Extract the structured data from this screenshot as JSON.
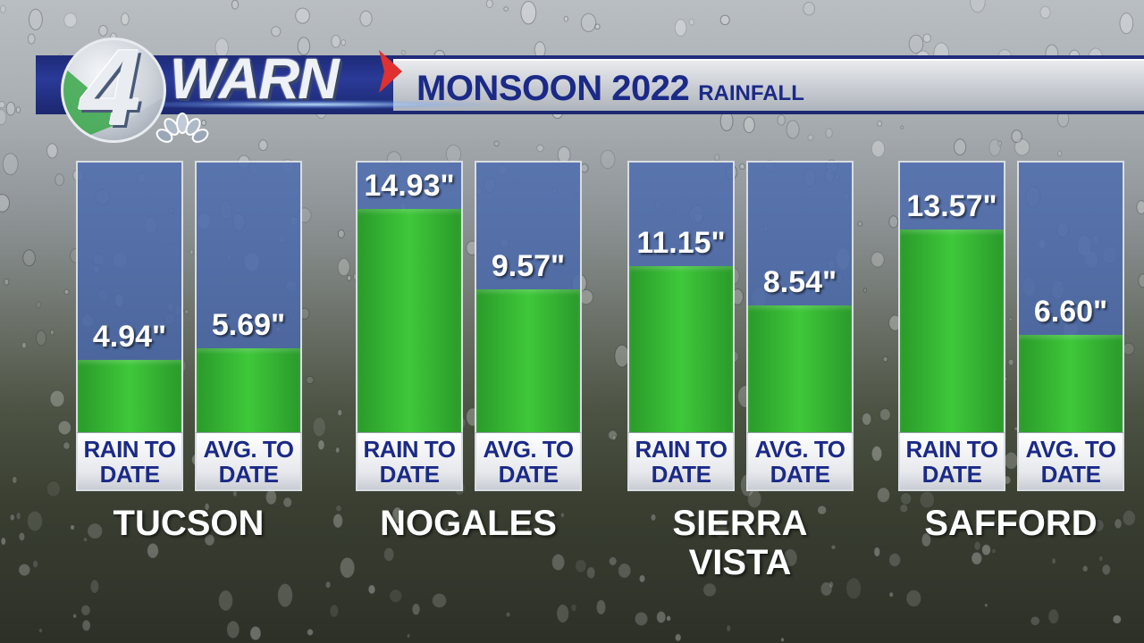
{
  "header": {
    "logo_number": "4",
    "logo_word": "WARN",
    "title": "MONSOON 2022",
    "subtitle": "RAINFALL"
  },
  "colors": {
    "banner_blue": "#1d2a78",
    "title_blue": "#1b2a86",
    "bar_green": "#3fc83a",
    "bar_bg_blue": "#506eaf",
    "arrow_red": "#e03030"
  },
  "chart_data": {
    "type": "bar",
    "title": "MONSOON 2022 RAINFALL",
    "unit": "\"",
    "ylim": [
      0,
      18
    ],
    "categories": [
      "TUCSON",
      "NOGALES",
      "SIERRA VISTA",
      "SAFFORD"
    ],
    "category_lines": [
      [
        "TUCSON"
      ],
      [
        "NOGALES"
      ],
      [
        "SIERRA",
        "VISTA"
      ],
      [
        "SAFFORD"
      ]
    ],
    "series": [
      {
        "name": "RAIN TO DATE",
        "label_lines": [
          "RAIN TO",
          "DATE"
        ],
        "values": [
          4.94,
          14.93,
          11.15,
          13.57
        ],
        "value_labels": [
          "4.94\"",
          "14.93\"",
          "11.15\"",
          "13.57\""
        ]
      },
      {
        "name": "AVG. TO DATE",
        "label_lines": [
          "AVG. TO",
          "DATE"
        ],
        "values": [
          5.69,
          9.57,
          8.54,
          6.6
        ],
        "value_labels": [
          "5.69\"",
          "9.57\"",
          "8.54\"",
          "6.60\""
        ]
      }
    ],
    "grid": false,
    "legend": "none"
  }
}
